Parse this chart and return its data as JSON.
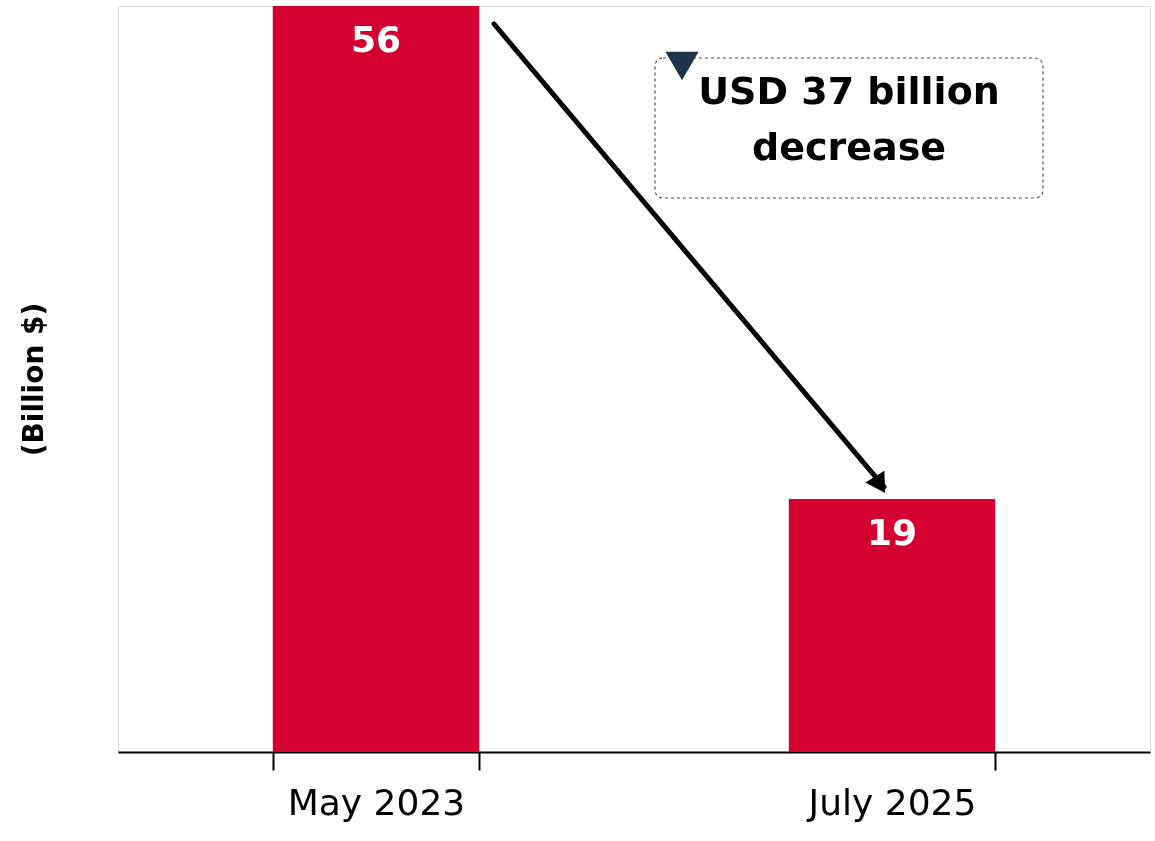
{
  "chart_data": {
    "type": "bar",
    "categories": [
      "May 2023",
      "July 2025"
    ],
    "values": [
      56,
      19
    ],
    "color": "#d50032",
    "ylabel": "(Billion $)",
    "data_labels": true,
    "annotations": [
      "USD 37 billion decrease"
    ]
  }
}
